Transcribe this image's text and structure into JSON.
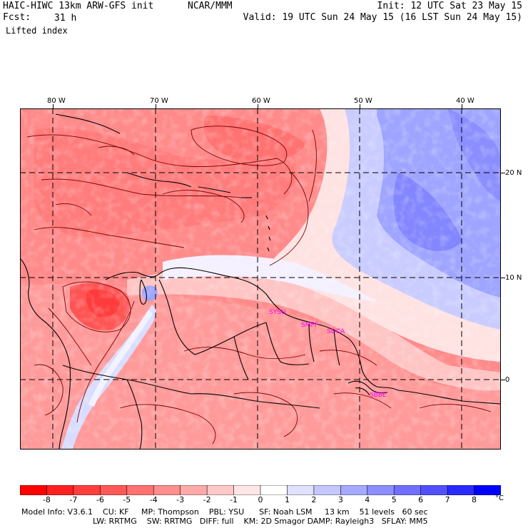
{
  "header": {
    "model_line": "HAIC-HIWC 13km ARW-GFS init",
    "org": "NCAR/MMM",
    "forecast_label": "Fcst:",
    "forecast_hours": "31 h",
    "field": "Lifted index",
    "init": "Init: 12 UTC Sat 23 May 15",
    "valid": "Valid: 19 UTC Sun 24 May 15 (16 LST Sun 24 May 15)"
  },
  "map": {
    "lon_labels": [
      "80 W",
      "70 W",
      "60 W",
      "50 W",
      "40 W"
    ],
    "lat_labels": [
      "20 N",
      "10 N",
      "0"
    ],
    "stations": [
      "SYSU",
      "SMPF",
      "SOCA",
      "SBBE"
    ],
    "colors": {
      "gridline": "#000000",
      "coast": "#000000",
      "contour": "#7a0000",
      "station": "#ff00ff"
    }
  },
  "colorbar": {
    "labels": [
      "-8",
      "-7",
      "-6",
      "-5",
      "-4",
      "-3",
      "-2",
      "-1",
      "0",
      "1",
      "2",
      "3",
      "4",
      "5",
      "6",
      "7",
      "8"
    ],
    "unit": "°C",
    "colors": [
      "#ff0000",
      "#ff2020",
      "#ff3e3e",
      "#ff5858",
      "#ff7272",
      "#ff8e8e",
      "#ffaaaa",
      "#ffc8c8",
      "#ffe6e6",
      "#ffffff",
      "#e0e0ff",
      "#c4c8ff",
      "#a6aaff",
      "#8c8eff",
      "#7070ff",
      "#5050ff",
      "#2a2aff",
      "#0000ff"
    ]
  },
  "footer": {
    "line1": "Model Info: V3.6.1    CU: KF     MP: Thompson    PBL: YSU      SF: Noah LSM     13 km    51 levels   60 sec",
    "line2": "LW: RRTMG    SW: RRTMG   DIFF: full    KM: 2D Smagor DAMP: Rayleigh3   SFLAY: MM5"
  }
}
